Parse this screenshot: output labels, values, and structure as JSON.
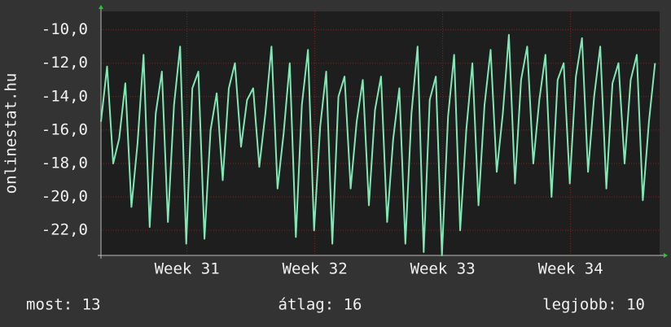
{
  "chart_data": {
    "type": "line",
    "ylabel": "onlinestat.hu",
    "xlim": [
      0,
      734
    ],
    "xticks": [
      {
        "value": 113,
        "label": "Week 31"
      },
      {
        "value": 281,
        "label": "Week 32"
      },
      {
        "value": 449,
        "label": "Week 33"
      },
      {
        "value": 617,
        "label": "Week 34"
      }
    ],
    "ylim": [
      -23.5,
      -8.9
    ],
    "yticks": [
      {
        "value": -10,
        "label": "-10,0"
      },
      {
        "value": -12,
        "label": "-12,0"
      },
      {
        "value": -14,
        "label": "-14,0"
      },
      {
        "value": -16,
        "label": "-16,0"
      },
      {
        "value": -18,
        "label": "-18,0"
      },
      {
        "value": -20,
        "label": "-20,0"
      },
      {
        "value": -22,
        "label": "-22,0"
      }
    ],
    "grid": true,
    "x": [
      0,
      8,
      16,
      24,
      32,
      40,
      48,
      56,
      64,
      72,
      80,
      88,
      96,
      104,
      112,
      120,
      128,
      136,
      144,
      152,
      160,
      168,
      176,
      184,
      192,
      200,
      208,
      216,
      224,
      232,
      240,
      248,
      256,
      264,
      272,
      280,
      288,
      296,
      304,
      312,
      320,
      328,
      336,
      344,
      352,
      360,
      368,
      376,
      384,
      392,
      400,
      408,
      416,
      424,
      432,
      440,
      448,
      456,
      464,
      472,
      480,
      488,
      496,
      504,
      512,
      520,
      528,
      536,
      544,
      552,
      560,
      568,
      576,
      584,
      592,
      600,
      608,
      616,
      624,
      632,
      640,
      648,
      656,
      664,
      672,
      680,
      688,
      696,
      704,
      712,
      720,
      728
    ],
    "series": [
      {
        "color": "#80e8b4",
        "values": [
          -15.5,
          -12.2,
          -18.0,
          -16.5,
          -13.2,
          -20.6,
          -16.8,
          -11.5,
          -21.8,
          -15.0,
          -12.5,
          -21.5,
          -14.5,
          -11.0,
          -22.8,
          -13.5,
          -12.5,
          -22.5,
          -16.0,
          -13.8,
          -19.0,
          -13.5,
          -12.0,
          -17.0,
          -14.2,
          -13.5,
          -18.2,
          -15.0,
          -11.0,
          -19.5,
          -16.2,
          -12.0,
          -22.4,
          -14.5,
          -11.2,
          -22.0,
          -15.8,
          -12.5,
          -22.8,
          -14.0,
          -12.8,
          -19.5,
          -15.5,
          -13.0,
          -20.5,
          -14.8,
          -12.8,
          -21.5,
          -16.5,
          -13.5,
          -22.8,
          -15.0,
          -11.0,
          -23.3,
          -14.2,
          -12.8,
          -23.5,
          -15.2,
          -11.5,
          -22.0,
          -16.0,
          -12.0,
          -20.5,
          -14.5,
          -11.2,
          -18.5,
          -15.0,
          -10.3,
          -19.2,
          -13.0,
          -11.0,
          -18.0,
          -14.2,
          -11.5,
          -20.0,
          -13.0,
          -12.0,
          -19.2,
          -12.8,
          -10.5,
          -18.5,
          -14.0,
          -11.0,
          -19.5,
          -13.2,
          -12.0,
          -18.0,
          -13.0,
          -11.5,
          -20.2,
          -15.5,
          -12.0
        ]
      }
    ]
  },
  "footer": {
    "current": "most: 13",
    "average": "átlag: 16",
    "best": "legjobb: 10"
  }
}
